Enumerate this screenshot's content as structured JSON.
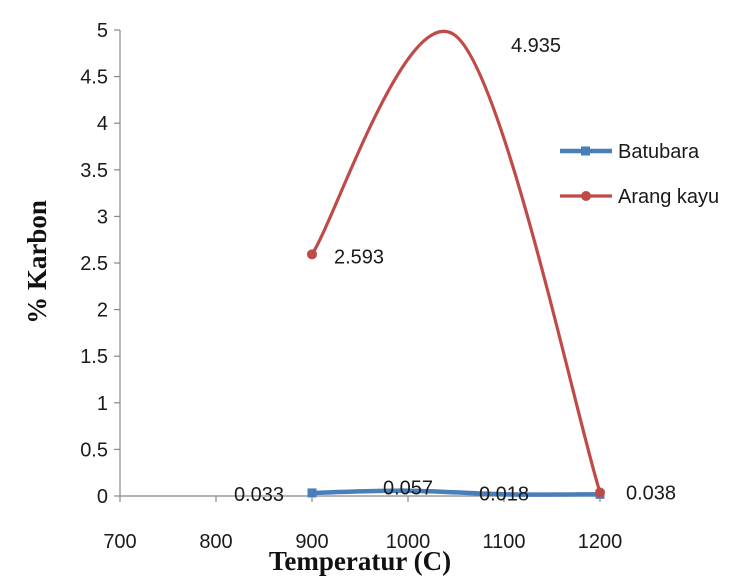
{
  "chart_data": {
    "type": "line",
    "title": "",
    "xlabel": "Temperatur (C)",
    "ylabel": "% Karbon",
    "xlim": [
      700,
      1200
    ],
    "ylim": [
      0,
      5
    ],
    "x_ticks": [
      700,
      800,
      900,
      1000,
      1100,
      1200
    ],
    "y_ticks": [
      0,
      0.5,
      1,
      1.5,
      2,
      2.5,
      3,
      3.5,
      4,
      4.5,
      5
    ],
    "grid": false,
    "legend_position": "right",
    "series": [
      {
        "name": "Batubara",
        "color": "#4a7ebb",
        "marker": "square",
        "x": [
          900,
          1200
        ],
        "y": [
          0.033,
          0.018
        ]
      },
      {
        "name": "Arang kayu",
        "color": "#be4b48",
        "marker": "circle",
        "x": [
          900,
          1200
        ],
        "y": [
          2.593,
          0.038
        ]
      }
    ],
    "data_labels": [
      {
        "text": "0.033",
        "x": 900,
        "y": 0.033,
        "series": "Batubara"
      },
      {
        "text": "0.057",
        "x": 1000,
        "y": 0.057,
        "series": "Batubara"
      },
      {
        "text": "0.018",
        "x": 1100,
        "y": 0.018,
        "series": "Batubara"
      },
      {
        "text": "2.593",
        "x": 900,
        "y": 2.593,
        "series": "Arang kayu"
      },
      {
        "text": "4.935",
        "x": 1050,
        "y": 4.935,
        "series": "Arang kayu"
      },
      {
        "text": "0.038",
        "x": 1200,
        "y": 0.038,
        "series": "Arang kayu"
      }
    ]
  }
}
